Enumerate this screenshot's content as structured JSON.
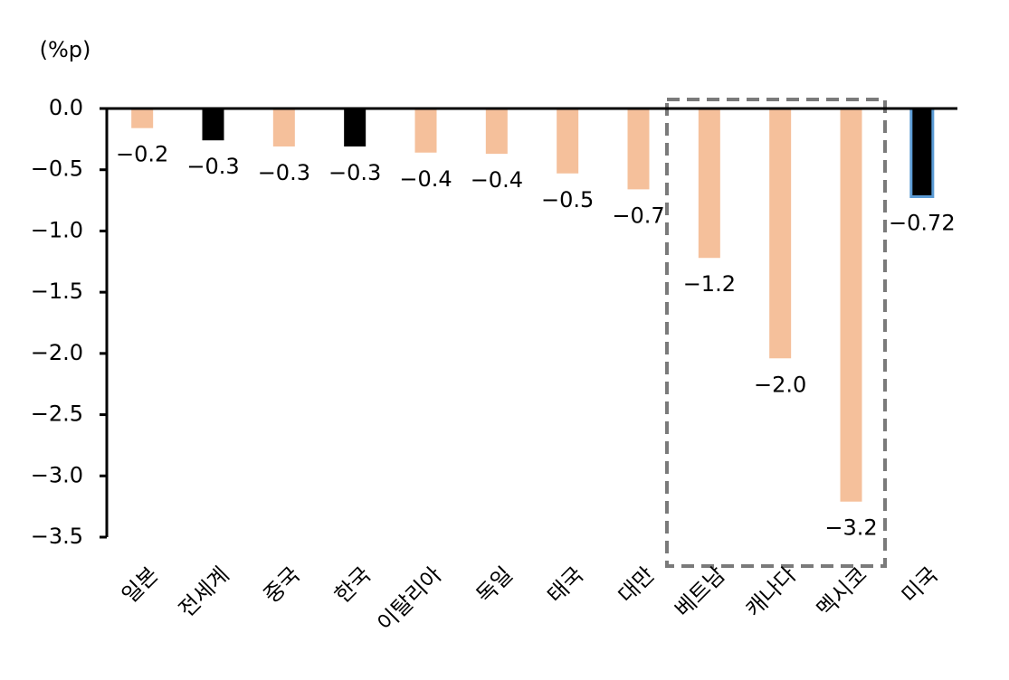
{
  "chart_data": {
    "type": "bar",
    "unit": "(%p)",
    "categories": [
      "일본",
      "전세계",
      "중국",
      "한국",
      "이탈리아",
      "독일",
      "태국",
      "대만",
      "베트남",
      "캐나다",
      "멕시코",
      "미국"
    ],
    "values": [
      -0.16,
      -0.26,
      -0.31,
      -0.31,
      -0.36,
      -0.37,
      -0.53,
      -0.66,
      -1.22,
      -2.04,
      -3.21,
      -0.72
    ],
    "value_labels": [
      "−0.2",
      "−0.3",
      "−0.3",
      "−0.3",
      "−0.4",
      "−0.4",
      "−0.5",
      "−0.7",
      "−1.2",
      "−2.0",
      "−3.2",
      "−0.72"
    ],
    "colors": [
      "#f5c09b",
      "#000000",
      "#f5c09b",
      "#000000",
      "#f5c09b",
      "#f5c09b",
      "#f5c09b",
      "#f5c09b",
      "#f5c09b",
      "#f5c09b",
      "#f5c09b",
      "#000000"
    ],
    "edgecolors": [
      null,
      null,
      null,
      null,
      null,
      null,
      null,
      null,
      null,
      null,
      null,
      "#5b9bd5"
    ],
    "ylim": [
      -3.5,
      0
    ],
    "yticks": [
      {
        "value": 0,
        "label": "0.0"
      },
      {
        "value": -0.5,
        "label": "−0.5"
      },
      {
        "value": -1,
        "label": "−1.0"
      },
      {
        "value": -1.5,
        "label": "−1.5"
      },
      {
        "value": -2,
        "label": "−2.0"
      },
      {
        "value": -2.5,
        "label": "−2.5"
      },
      {
        "value": -3,
        "label": "−3.0"
      },
      {
        "value": -3.5,
        "label": "−3.5"
      }
    ],
    "grid": false
  }
}
